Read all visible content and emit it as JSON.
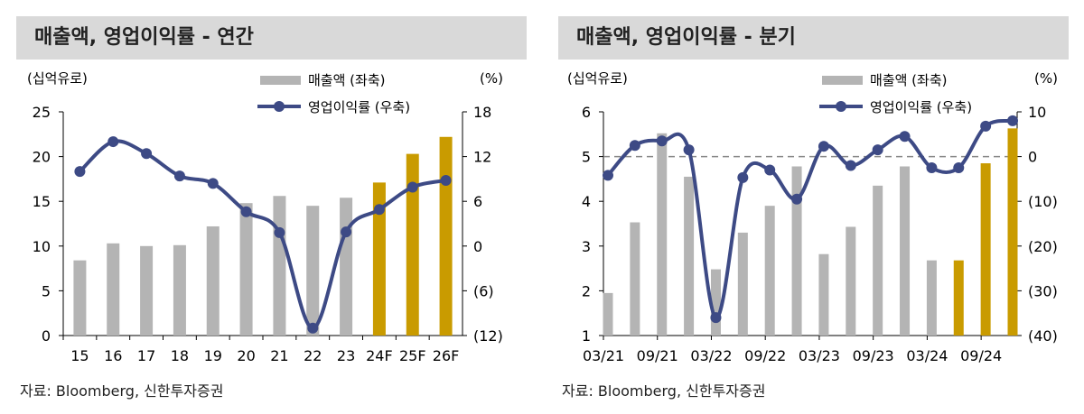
{
  "colors": {
    "bar": "#b4b4b4",
    "forecast_bar": "#c99b00",
    "line": "#3d4a85",
    "header_bg": "#d9d9d9"
  },
  "source": "자료: Bloomberg, 신한투자증권",
  "chart_data": [
    {
      "type": "bar+line",
      "title": "매출액, 영업이익률 - 연간",
      "left_unit": "(십억유로)",
      "right_unit": "(%)",
      "categories": [
        "15",
        "16",
        "17",
        "18",
        "19",
        "20",
        "21",
        "22",
        "23",
        "24F",
        "25F",
        "26F"
      ],
      "forecast_from": "24F",
      "left_ylim": [
        0,
        25
      ],
      "left_ticks": [
        "0",
        "5",
        "10",
        "15",
        "20",
        "25"
      ],
      "right_ylim": [
        -12,
        18
      ],
      "right_ticks": [
        "(12)",
        "(6)",
        "0",
        "6",
        "12",
        "18"
      ],
      "series": [
        {
          "name": "매출액 (좌축)",
          "type": "bar",
          "axis": "left",
          "values": [
            8.4,
            10.3,
            10.0,
            10.1,
            12.2,
            14.8,
            15.6,
            14.5,
            15.4,
            17.1,
            20.3,
            22.2
          ]
        },
        {
          "name": "영업이익률 (우축)",
          "type": "line",
          "axis": "right",
          "values": [
            10.0,
            14.0,
            12.4,
            9.4,
            8.4,
            4.6,
            1.8,
            -11.0,
            1.9,
            4.9,
            7.9,
            8.8
          ]
        }
      ],
      "zero_line": false
    },
    {
      "type": "bar+line",
      "title": "매출액, 영업이익률 - 분기",
      "left_unit": "(십억유로)",
      "right_unit": "(%)",
      "categories": [
        "03/21",
        "06/21",
        "09/21",
        "12/21",
        "03/22",
        "06/22",
        "09/22",
        "12/22",
        "03/23",
        "06/23",
        "09/23",
        "12/23",
        "03/24",
        "06/24",
        "09/24",
        "12/24"
      ],
      "tick_labels": [
        "03/21",
        "09/21",
        "03/22",
        "09/22",
        "03/23",
        "09/23",
        "03/24",
        "09/24"
      ],
      "forecast_from": "06/24",
      "left_ylim": [
        1,
        6
      ],
      "left_ticks": [
        "1",
        "2",
        "3",
        "4",
        "5",
        "6"
      ],
      "right_ylim": [
        -40,
        10
      ],
      "right_ticks": [
        "(40)",
        "(30)",
        "(20)",
        "(10)",
        "0",
        "10"
      ],
      "series": [
        {
          "name": "매출액 (좌축)",
          "type": "bar",
          "axis": "left",
          "values": [
            1.95,
            3.53,
            5.52,
            4.55,
            2.48,
            3.3,
            3.9,
            4.78,
            2.82,
            3.43,
            4.35,
            4.78,
            2.68,
            2.68,
            4.85,
            5.63
          ]
        },
        {
          "name": "영업이익률 (우축)",
          "type": "line",
          "axis": "right",
          "values": [
            -4.2,
            2.5,
            3.5,
            1.5,
            -36.0,
            -4.7,
            -3.0,
            -9.5,
            2.3,
            -2.0,
            1.5,
            4.5,
            -2.5,
            -2.5,
            6.8,
            8.0
          ]
        }
      ],
      "zero_line": true
    }
  ]
}
